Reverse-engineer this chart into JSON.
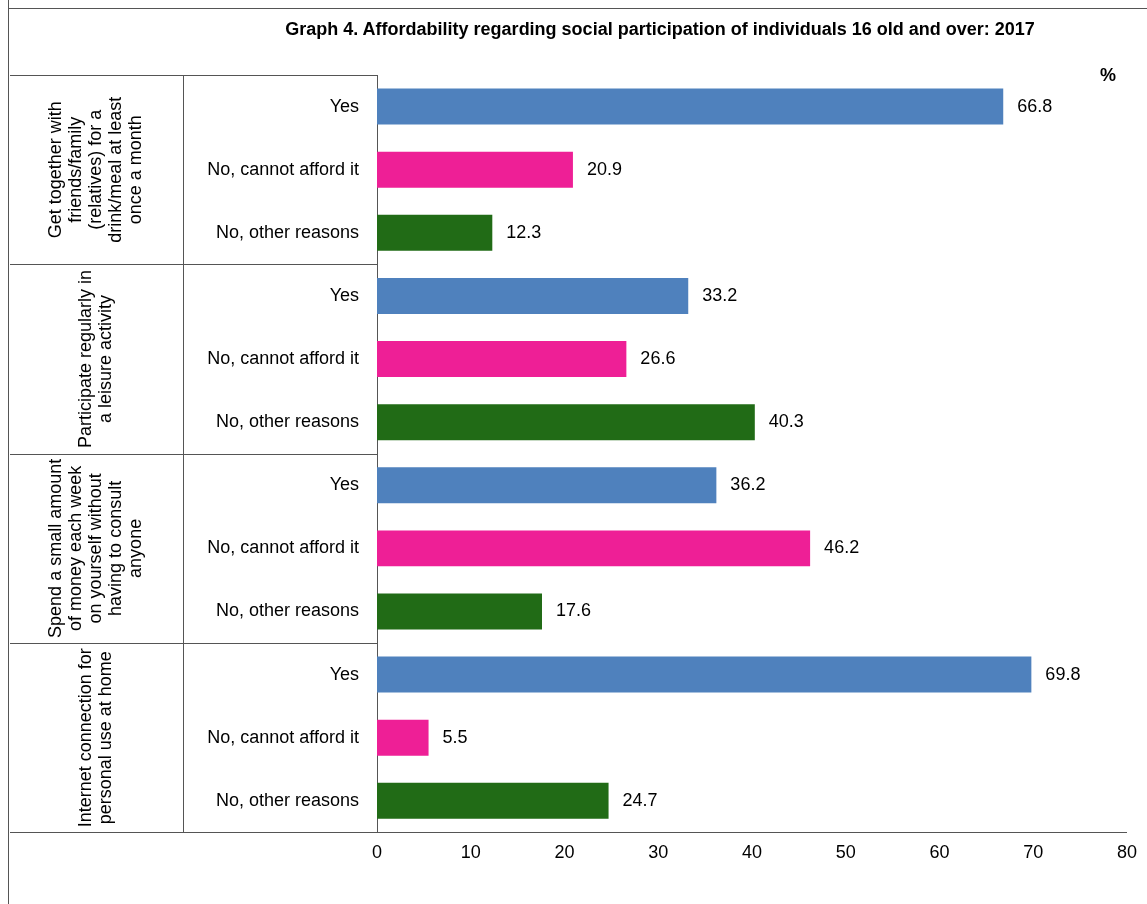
{
  "chart_data": {
    "type": "bar",
    "orientation": "horizontal",
    "title": "Graph 4. Affordability regarding social participation of individuals 16 old and over: 2017",
    "xlabel": "%",
    "categories": [
      "Yes",
      "No, cannot afford it",
      "No, other reasons",
      "Yes",
      "No, cannot afford it",
      "No, other reasons",
      "Yes",
      "No, cannot afford it",
      "No, other reasons",
      "Yes",
      "No, cannot afford it",
      "No, other reasons"
    ],
    "values": [
      66.8,
      20.9,
      12.3,
      33.2,
      26.6,
      40.3,
      36.2,
      46.2,
      17.6,
      69.8,
      5.5,
      24.7
    ],
    "colors": [
      "#4f81bd",
      "#ee1f96",
      "#216b16",
      "#4f81bd",
      "#ee1f96",
      "#216b16",
      "#4f81bd",
      "#ee1f96",
      "#216b16",
      "#4f81bd",
      "#ee1f96",
      "#216b16"
    ],
    "xlim": [
      0,
      80
    ],
    "xticks": [
      0,
      10,
      20,
      30,
      40,
      50,
      60,
      70,
      80
    ],
    "grid": false,
    "legend": false,
    "data_labels": true,
    "annotations": [
      "Get together with friends/family (relatives) for a drink/meal at least once a month",
      "Participate regularly in a leisure activity",
      "Spend a small amount of money each week on yourself without having to consult anyone",
      "Internet connection for personal use at home"
    ]
  }
}
